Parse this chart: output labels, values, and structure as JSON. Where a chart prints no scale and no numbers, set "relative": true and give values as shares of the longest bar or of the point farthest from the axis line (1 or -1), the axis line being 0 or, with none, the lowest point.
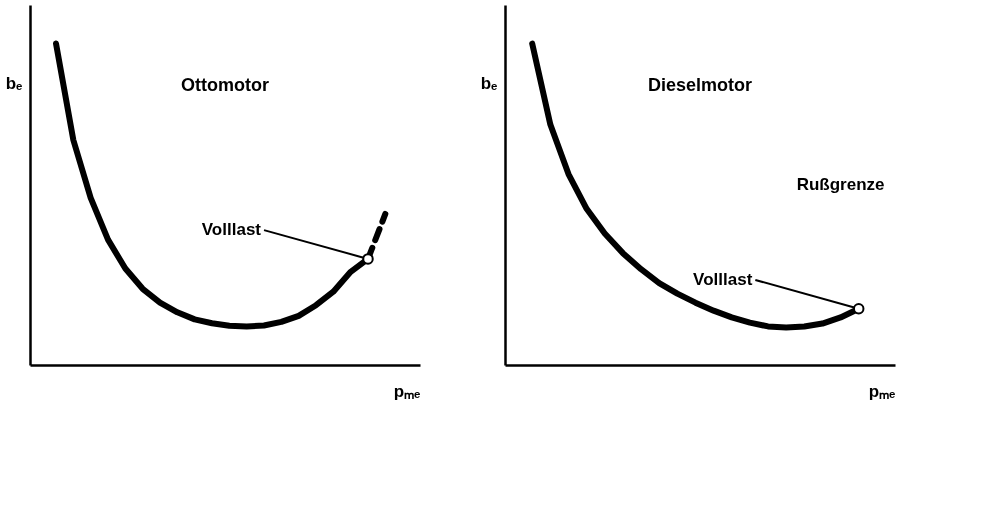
{
  "chart_data": [
    {
      "type": "line",
      "title": "Ottomotor",
      "xlabel": "pₘₑ",
      "ylabel": "bₑ",
      "relative": true,
      "categories": [
        null,
        null,
        null,
        null,
        null,
        null,
        null,
        null,
        null,
        null,
        null,
        null,
        null,
        null,
        null,
        null,
        null,
        null,
        null,
        null
      ],
      "series": [
        {
          "color": "#000000",
          "line_style": "solid",
          "values": [
            1.0,
            0.7,
            0.52,
            0.39,
            0.3,
            0.237,
            0.194,
            0.164,
            0.142,
            0.13,
            0.122,
            0.12,
            0.123,
            0.134,
            0.153,
            0.186,
            0.228,
            0.29,
            0.33,
            null
          ]
        },
        {
          "color": "#000000",
          "line_style": "dashed",
          "values": [
            null,
            null,
            null,
            null,
            null,
            null,
            null,
            null,
            null,
            null,
            null,
            null,
            null,
            null,
            null,
            null,
            null,
            null,
            0.33,
            0.47
          ]
        }
      ],
      "annotations": [
        "Volllast"
      ]
    },
    {
      "type": "line",
      "title": "Dieselmotor",
      "xlabel": "pₘₑ",
      "ylabel": "bₑ",
      "relative": true,
      "categories": [
        null,
        null,
        null,
        null,
        null,
        null,
        null,
        null,
        null,
        null,
        null,
        null,
        null,
        null,
        null,
        null,
        null,
        null,
        null
      ],
      "series": [
        {
          "color": "#000000",
          "line_style": "solid",
          "values": [
            1.0,
            0.748,
            0.594,
            0.486,
            0.409,
            0.348,
            0.298,
            0.255,
            0.222,
            0.194,
            0.169,
            0.148,
            0.132,
            0.12,
            0.117,
            0.12,
            0.129,
            0.148,
            0.175
          ]
        }
      ],
      "annotations": [
        "Volllast",
        "Rußgrenze"
      ]
    }
  ]
}
